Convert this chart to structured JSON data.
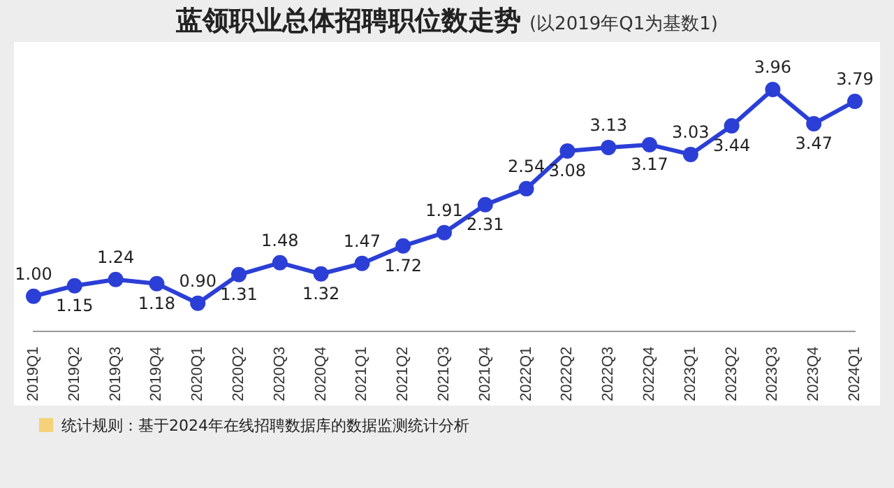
{
  "chart_data": {
    "type": "line",
    "title": "蓝领职业总体招聘职位数走势",
    "subtitle": "(以2019年Q1为基数1)",
    "categories": [
      "2019Q1",
      "2019Q2",
      "2019Q3",
      "2019Q4",
      "2020Q1",
      "2020Q2",
      "2020Q3",
      "2020Q4",
      "2021Q1",
      "2021Q2",
      "2021Q3",
      "2021Q4",
      "2022Q1",
      "2022Q2",
      "2022Q3",
      "2022Q4",
      "2023Q1",
      "2023Q2",
      "2023Q3",
      "2023Q4",
      "2024Q1"
    ],
    "series": [
      {
        "color": "#2b3fd6",
        "values": [
          1.0,
          1.15,
          1.24,
          1.18,
          0.9,
          1.31,
          1.48,
          1.32,
          1.47,
          1.72,
          1.91,
          2.31,
          2.54,
          3.08,
          3.13,
          3.17,
          3.03,
          3.44,
          3.96,
          3.47,
          3.79
        ],
        "value_labels": [
          "1.00",
          "1.15",
          "1.24",
          "1.18",
          "0.90",
          "1.31",
          "1.48",
          "1.32",
          "1.47",
          "1.72",
          "1.91",
          "2.31",
          "2.54",
          "3.08",
          "3.13",
          "3.17",
          "3.03",
          "3.44",
          "3.96",
          "3.47",
          "3.79"
        ]
      }
    ],
    "marker": "circle",
    "legend": false,
    "tick_labels": "x",
    "annotations": [
      "统计规则：基于2024年在线招聘数据库的数据监测统计分析"
    ]
  }
}
